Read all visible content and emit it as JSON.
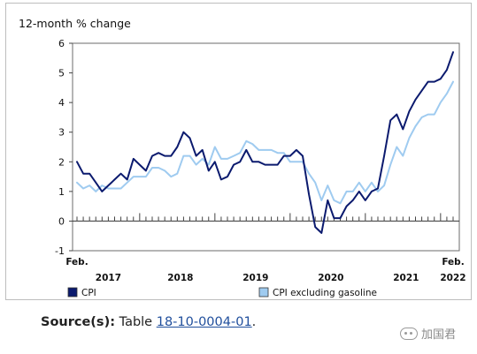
{
  "chart_data": {
    "type": "line",
    "ylabel": "12-month % change",
    "ylim": [
      -1,
      6
    ],
    "yticks": [
      "-1",
      "0",
      "1",
      "2",
      "3",
      "4",
      "5",
      "6"
    ],
    "x_start_label": "Feb.",
    "x_end_label": "Feb.",
    "year_labels": [
      "2017",
      "2018",
      "2019",
      "2020",
      "2021",
      "2022"
    ],
    "months": 61,
    "series": [
      {
        "name": "CPI",
        "color": "#0b1a6e",
        "values": [
          2.0,
          1.6,
          1.6,
          1.3,
          1.0,
          1.2,
          1.4,
          1.6,
          1.4,
          2.1,
          1.9,
          1.7,
          2.2,
          2.3,
          2.2,
          2.2,
          2.5,
          3.0,
          2.8,
          2.2,
          2.4,
          1.7,
          2.0,
          1.4,
          1.5,
          1.9,
          2.0,
          2.4,
          2.0,
          2.0,
          1.9,
          1.9,
          1.9,
          2.2,
          2.2,
          2.4,
          2.2,
          0.9,
          -0.2,
          -0.4,
          0.7,
          0.1,
          0.1,
          0.5,
          0.7,
          1.0,
          0.7,
          1.0,
          1.1,
          2.2,
          3.4,
          3.6,
          3.1,
          3.7,
          4.1,
          4.4,
          4.7,
          4.7,
          4.8,
          5.1,
          5.7
        ]
      },
      {
        "name": "CPI excluding gasoline",
        "color": "#9fcbf0",
        "values": [
          1.3,
          1.1,
          1.2,
          1.0,
          1.2,
          1.1,
          1.1,
          1.1,
          1.3,
          1.5,
          1.5,
          1.5,
          1.8,
          1.8,
          1.7,
          1.5,
          1.6,
          2.2,
          2.2,
          1.9,
          2.1,
          1.9,
          2.5,
          2.1,
          2.1,
          2.2,
          2.3,
          2.7,
          2.6,
          2.4,
          2.4,
          2.4,
          2.3,
          2.3,
          2.0,
          2.0,
          2.0,
          1.6,
          1.3,
          0.7,
          1.2,
          0.7,
          0.6,
          1.0,
          1.0,
          1.3,
          1.0,
          1.3,
          1.0,
          1.2,
          1.9,
          2.5,
          2.2,
          2.8,
          3.2,
          3.5,
          3.6,
          3.6,
          4.0,
          4.3,
          4.7
        ]
      }
    ]
  },
  "source": {
    "label": "Source(s):",
    "text": "Table",
    "link": "18-10-0004-01",
    "end": "."
  },
  "watermark": {
    "text": "加国君"
  }
}
